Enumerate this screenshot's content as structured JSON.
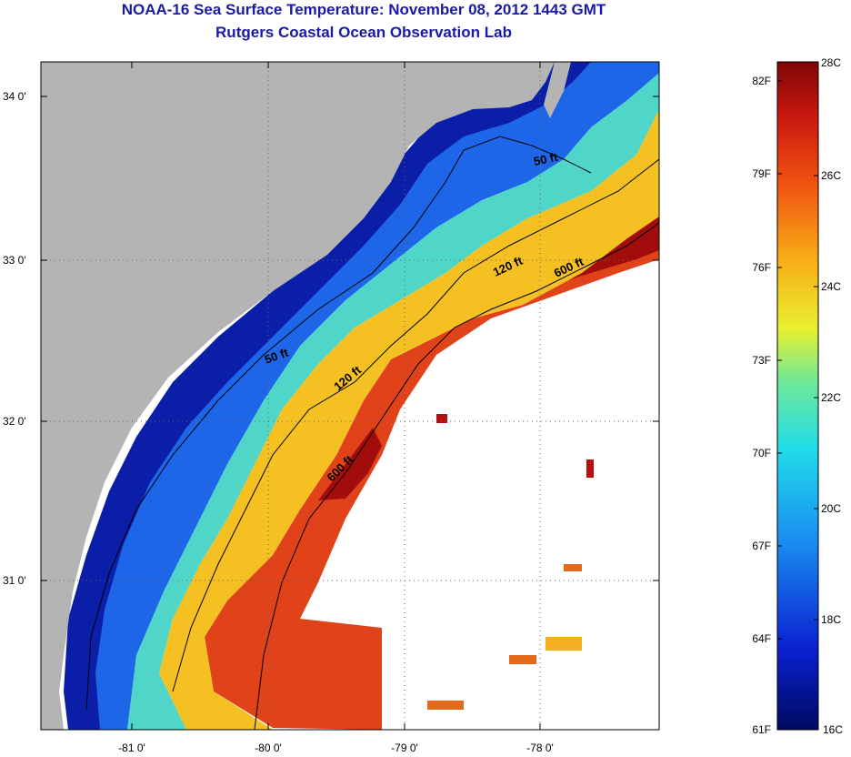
{
  "header": {
    "title": "NOAA-16 Sea Surface Temperature:  November 08, 2012 1443 GMT",
    "subtitle": "Rutgers Coastal Ocean Observation Lab"
  },
  "map": {
    "lat_ticks": [
      "34 0'",
      "33 0'",
      "32 0'",
      "31 0'"
    ],
    "lon_ticks": [
      "-81 0'",
      "-80 0'",
      "-79 0'",
      "-78 0'"
    ],
    "contours": [
      "50 ft",
      "50 ft",
      "120 ft",
      "120 ft",
      "600 ft",
      "600 ft"
    ],
    "land_color": "#b4b4b4",
    "cloud_color": "#ffffff"
  },
  "colorbar": {
    "fahrenheit_labels": [
      "82F",
      "79F",
      "76F",
      "73F",
      "70F",
      "67F",
      "64F",
      "61F"
    ],
    "celsius_labels": [
      "28C",
      "26C",
      "24C",
      "22C",
      "20C",
      "18C",
      "16C"
    ],
    "range_c": [
      16,
      28
    ],
    "range_f": [
      61,
      82
    ]
  }
}
